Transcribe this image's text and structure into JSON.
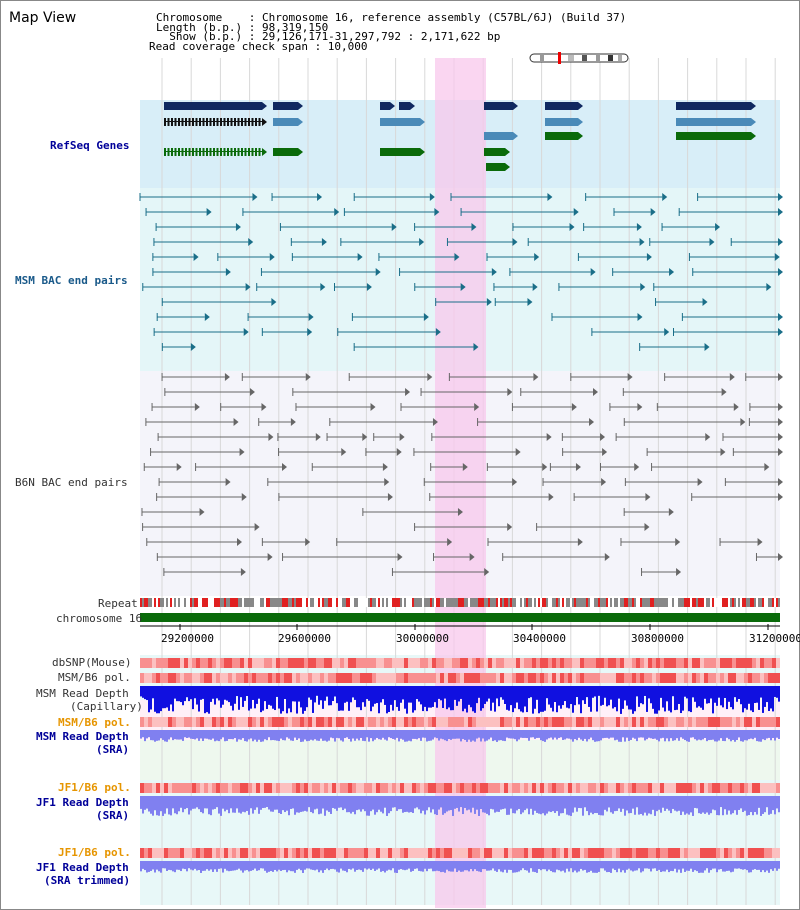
{
  "title": "Map View",
  "info": {
    "line1": "Chromosome    : Chromosome 16, reference assembly (C57BL/6J) (Build 37)",
    "line2": "Length (b.p.) : 98,319,150",
    "line3": "  Show (b.p.) : 29,126,171-31,297,792 : 2,171,622 bp",
    "line4": "Read coverage check span : 10,000"
  },
  "tracks": {
    "refseq": "RefSeq Genes",
    "msm_bac": "MSM BAC end pairs",
    "b6n_bac": "B6N BAC end pairs",
    "repeat": "Repeat",
    "chromosome": "chromosome 16",
    "dbsnp": "dbSNP(Mouse)",
    "msm_b6_pol": "MSM/B6 pol.",
    "msm_depth_cap_1": "MSM Read Depth",
    "msm_depth_cap_2": "(Capillary)",
    "msm_b6_pol2": "MSM/B6 pol.",
    "msm_depth_sra_1": "MSM Read Depth",
    "msm_depth_sra_2": "(SRA)",
    "jf1_b6_pol": "JF1/B6 pol.",
    "jf1_depth_sra_1": "JF1 Read Depth",
    "jf1_depth_sra_2": "(SRA)",
    "jf1_b6_pol2": "JF1/B6 pol.",
    "jf1_depth_trim_1": "JF1 Read Depth",
    "jf1_depth_trim_2": "(SRA trimmed)"
  },
  "axis": {
    "ticks": [
      "29200000",
      "29600000",
      "30000000",
      "30400000",
      "30800000",
      "31200000"
    ]
  },
  "colors": {
    "highlight": "#f8c8ec",
    "refseq_bg": "#d8eef8",
    "bac_bg": "#e4f6f8",
    "gene_dark": "#102860",
    "gene_mid": "#4a8ab8",
    "gene_green": "#0a6a0a",
    "msm_line": "#1a6e88",
    "b6n_line": "#666666",
    "depth_blue": "#1010e0",
    "depth_light": "#8080f0",
    "pol_red": "#f05050"
  }
}
